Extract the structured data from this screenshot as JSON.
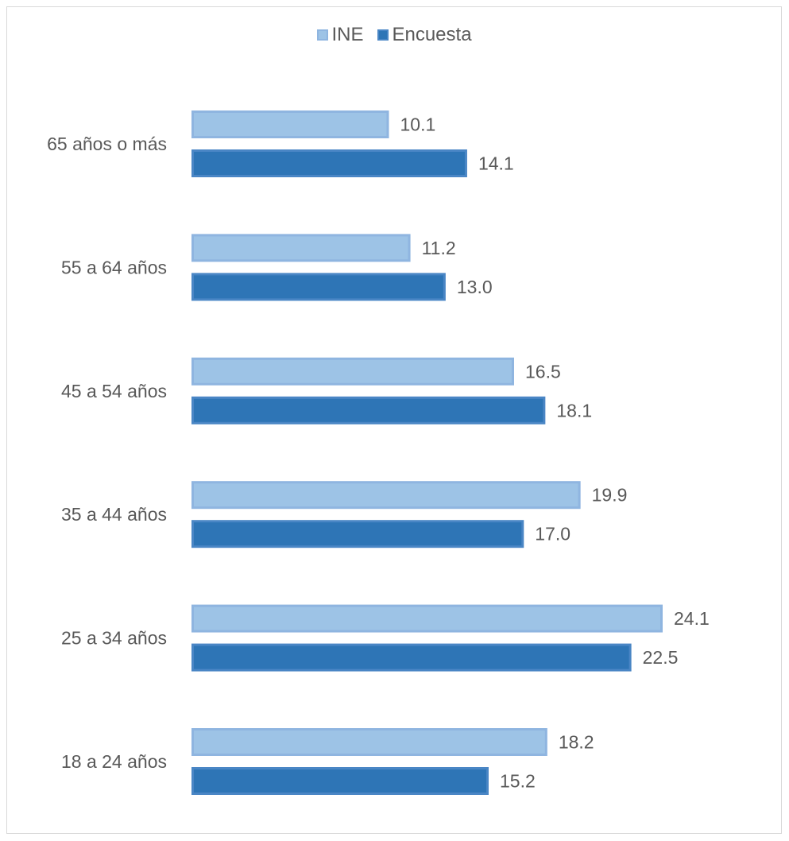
{
  "colors": {
    "ine_fill": "#9dc3e6",
    "ine_stroke": "#8fb5e0",
    "encuesta_fill": "#2e75b6",
    "encuesta_stroke": "#4a86c5",
    "text": "#595959",
    "border": "#d9d9d9"
  },
  "legend": {
    "items": [
      {
        "label": "INE"
      },
      {
        "label": "Encuesta"
      }
    ]
  },
  "chart_data": {
    "type": "bar",
    "orientation": "horizontal",
    "categories": [
      "65 años o más",
      "55 a 64 años",
      "45 a 54 años",
      "35 a 44 años",
      "25 a 34 años",
      "18 a 24 años"
    ],
    "series": [
      {
        "name": "INE",
        "values": [
          10.1,
          11.2,
          16.5,
          19.9,
          24.1,
          18.2
        ],
        "labels": [
          "10.1",
          "11.2",
          "16.5",
          "19.9",
          "24.1",
          "18.2"
        ]
      },
      {
        "name": "Encuesta",
        "values": [
          14.1,
          13.0,
          18.1,
          17.0,
          22.5,
          15.2
        ],
        "labels": [
          "14.1",
          "13.0",
          "18.1",
          "17.0",
          "22.5",
          "15.2"
        ]
      }
    ],
    "title": "",
    "xlabel": "",
    "ylabel": "",
    "xlim": [
      0,
      24.1
    ],
    "grid": false,
    "legend_position": "top"
  }
}
